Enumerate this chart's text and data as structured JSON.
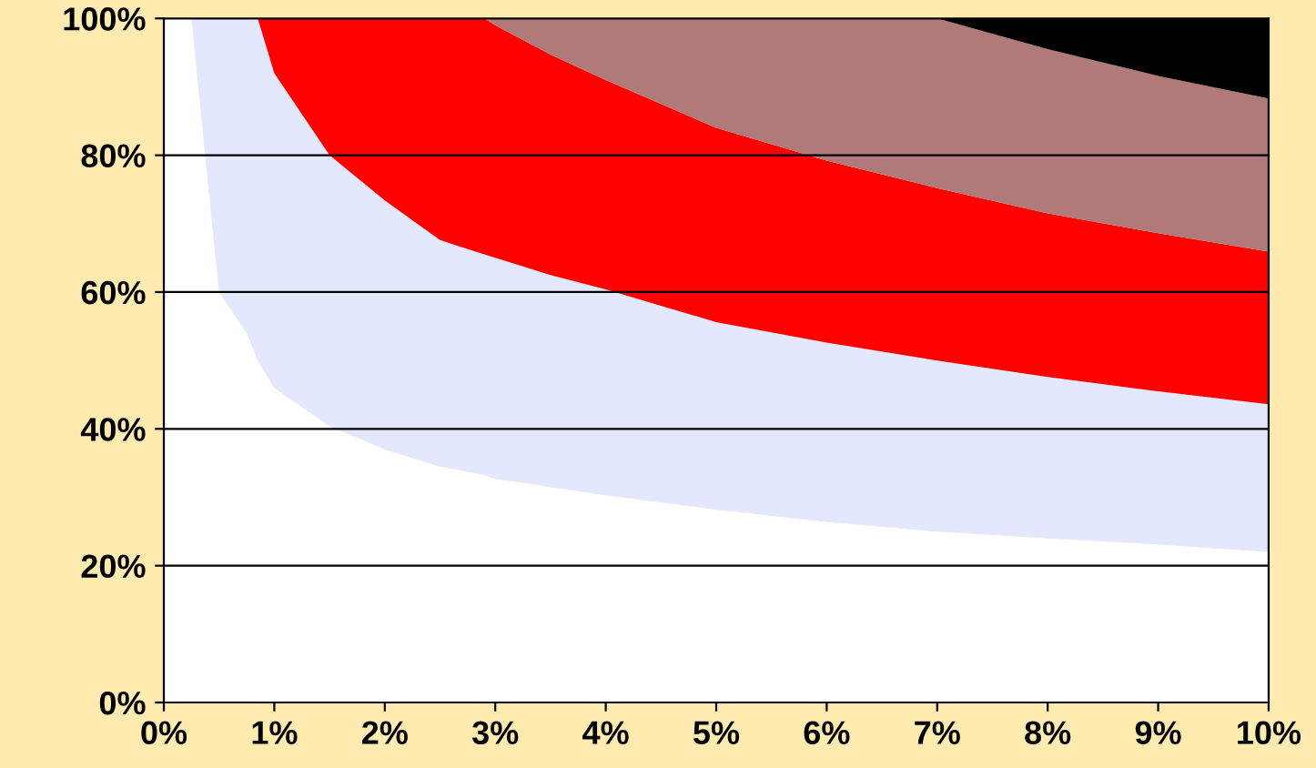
{
  "chart_data": {
    "type": "area",
    "stacked": true,
    "x": [
      0,
      0.25,
      0.5,
      0.75,
      0.85,
      1,
      1.5,
      2,
      2.5,
      2.9,
      3,
      3.5,
      4,
      5,
      6,
      7,
      8,
      9,
      10
    ],
    "series": [
      {
        "color": "#ffffff",
        "values": [
          100,
          100,
          60,
          54,
          50,
          46,
          40.4,
          37,
          34.5,
          33.3,
          32.7,
          31.5,
          30.3,
          28.2,
          26.4,
          25,
          24,
          23.1,
          22
        ]
      },
      {
        "color": "#e3e8ff",
        "values": [
          0,
          0,
          40,
          46,
          50,
          46,
          39.6,
          36.4,
          33.1,
          32.2,
          32.3,
          31,
          30.1,
          27.4,
          26.2,
          25,
          23.6,
          22.4,
          21.6
        ]
      },
      {
        "color": "#ff0000",
        "values": [
          0,
          0,
          0,
          0,
          0,
          8,
          20,
          26.6,
          32.4,
          34.5,
          34,
          32.2,
          30.6,
          28.4,
          26.6,
          25.2,
          23.9,
          23.1,
          22.3
        ]
      },
      {
        "color": "#b07a7a",
        "values": [
          0,
          0,
          0,
          0,
          0,
          0,
          0,
          0,
          0,
          0,
          1,
          5.3,
          9,
          16,
          20.8,
          24.8,
          24,
          23,
          22.4
        ]
      },
      {
        "color": "#000000",
        "values": [
          0,
          0,
          0,
          0,
          0,
          0,
          0,
          0,
          0,
          0,
          0,
          0,
          0,
          0,
          0,
          0,
          4.5,
          8.4,
          11.7
        ]
      }
    ],
    "xlim": [
      0,
      10
    ],
    "ylim": [
      0,
      100
    ],
    "xticks": [
      {
        "value": 0,
        "label": "0%"
      },
      {
        "value": 1,
        "label": "1%"
      },
      {
        "value": 2,
        "label": "2%"
      },
      {
        "value": 3,
        "label": "3%"
      },
      {
        "value": 4,
        "label": "4%"
      },
      {
        "value": 5,
        "label": "5%"
      },
      {
        "value": 6,
        "label": "6%"
      },
      {
        "value": 7,
        "label": "7%"
      },
      {
        "value": 8,
        "label": "8%"
      },
      {
        "value": 9,
        "label": "9%"
      },
      {
        "value": 10,
        "label": "10%"
      }
    ],
    "yticks": [
      {
        "value": 0,
        "label": "0%"
      },
      {
        "value": 20,
        "label": "20%"
      },
      {
        "value": 40,
        "label": "40%"
      },
      {
        "value": 60,
        "label": "60%"
      },
      {
        "value": 80,
        "label": "80%"
      },
      {
        "value": 100,
        "label": "100%"
      }
    ],
    "grid": "y",
    "legend": false
  }
}
